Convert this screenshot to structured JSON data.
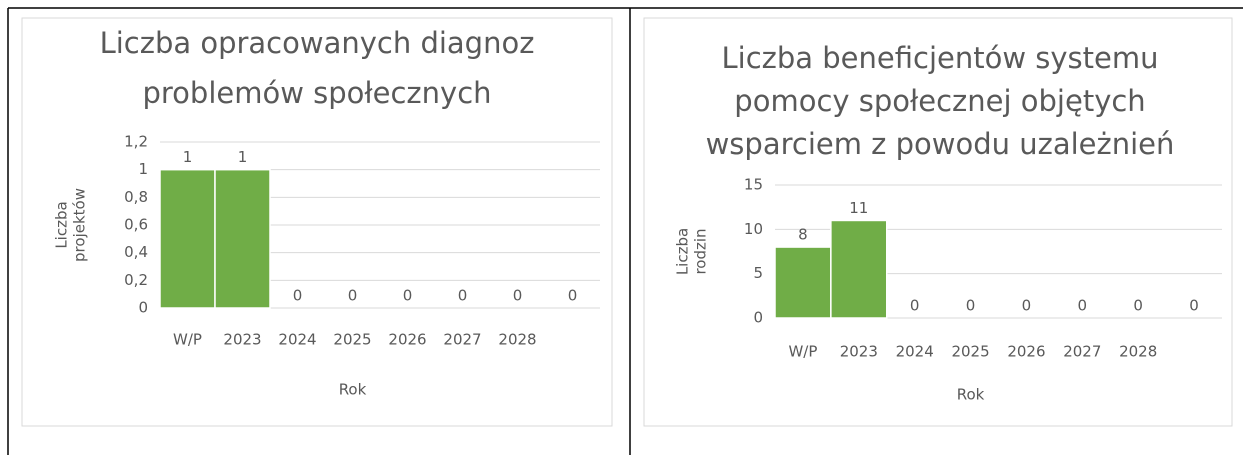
{
  "chart_data": [
    {
      "type": "bar",
      "title": [
        "Liczba opracowanych diagnoz",
        "problemów społecznych"
      ],
      "y_label": [
        "Liczba",
        "projektów"
      ],
      "x_label": "Rok",
      "categories": [
        "W/P",
        "2023",
        "2024",
        "2025",
        "2026",
        "2027",
        "2028",
        null
      ],
      "values": [
        1,
        1,
        0,
        0,
        0,
        0,
        0,
        0
      ],
      "color": "#70ad47",
      "ylim": [
        0,
        1.2
      ],
      "yticks": [
        0,
        {
          "value": 0.2,
          "label": "0,2"
        },
        {
          "value": 0.4,
          "label": "0,4"
        },
        {
          "value": 0.6,
          "label": "0,6"
        },
        {
          "value": 0.8,
          "label": "0,8"
        },
        1,
        {
          "value": 1.2,
          "label": "1,2"
        }
      ],
      "grid": true
    },
    {
      "type": "bar",
      "title": [
        "Liczba beneficjentów systemu",
        "pomocy społecznej objętych",
        "wsparciem z powodu uzależnień"
      ],
      "y_label": [
        "Liczba",
        "rodzin"
      ],
      "x_label": "Rok",
      "categories": [
        "W/P",
        "2023",
        "2024",
        "2025",
        "2026",
        "2027",
        "2028",
        null
      ],
      "values": [
        8,
        11,
        0,
        0,
        0,
        0,
        0,
        0
      ],
      "color": "#70ad47",
      "ylim": [
        0,
        15
      ],
      "yticks": [
        0,
        5,
        10,
        15
      ],
      "grid": true
    }
  ]
}
